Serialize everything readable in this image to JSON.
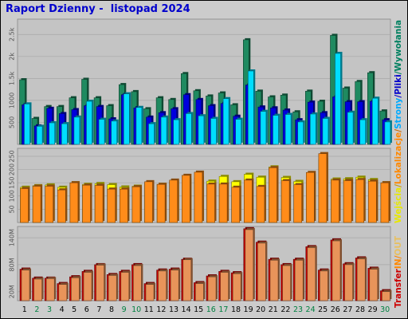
{
  "title": "Raport Dzienny -  listopad 2024",
  "colors": {
    "background": "#cccccc",
    "plot_bg": "#c4c4c4",
    "grid": "#a8a8a8",
    "weekday_label": "#000000",
    "weekend_label": "#008040"
  },
  "legend": [
    {
      "key": "wyjscia",
      "label": "Wejścia",
      "color": "#e8e800"
    },
    {
      "key": "sep1",
      "label": "/",
      "color": "#cc9900"
    },
    {
      "key": "lokalizacje",
      "label": "Lokalizacje",
      "color": "#ff8800"
    },
    {
      "key": "sep2",
      "label": "/",
      "color": "#cc6600"
    },
    {
      "key": "strony",
      "label": "Strony",
      "color": "#00aaff"
    },
    {
      "key": "sep3",
      "label": "/",
      "color": "#0000cc"
    },
    {
      "key": "pliki",
      "label": "Pliki",
      "color": "#0000cc"
    },
    {
      "key": "sep4",
      "label": "/",
      "color": "#008060"
    },
    {
      "key": "wywolania",
      "label": "Wywołania",
      "color": "#008060"
    }
  ],
  "legend2": [
    {
      "key": "transfer",
      "label": "Transfer",
      "color": "#cc0000"
    },
    {
      "key": "in",
      "label": "IN",
      "color": "#ff8800"
    },
    {
      "key": "sep",
      "label": "/",
      "color": "#ff8800"
    },
    {
      "key": "out",
      "label": "OUT",
      "color": "#e8c060"
    }
  ],
  "chart_data": [
    {
      "type": "bar",
      "name": "hits-files-pages",
      "categories": [
        "1",
        "2",
        "3",
        "4",
        "5",
        "6",
        "7",
        "8",
        "9",
        "10",
        "11",
        "12",
        "13",
        "14",
        "15",
        "16",
        "17",
        "18",
        "19",
        "20",
        "21",
        "22",
        "23",
        "24",
        "25",
        "26",
        "27",
        "28",
        "29",
        "30"
      ],
      "weekend": [
        2,
        3,
        9,
        10,
        16,
        17,
        23,
        24,
        30
      ],
      "yticks": [
        "500",
        "1000",
        "1.5k",
        "2k",
        "2.5k"
      ],
      "ytick_values": [
        500,
        1000,
        1500,
        2000,
        2500
      ],
      "ylim": [
        0,
        2850
      ],
      "series": [
        {
          "name": "Wywołania",
          "color": "#1f8a60",
          "values": [
            1470,
            590,
            860,
            860,
            1060,
            1480,
            1060,
            880,
            1360,
            1200,
            810,
            1060,
            1020,
            1610,
            1220,
            1100,
            1170,
            900,
            2380,
            1210,
            1080,
            1120,
            740,
            1210,
            980,
            2480,
            1280,
            1430,
            1630,
            760
          ]
        },
        {
          "name": "Pliki",
          "color": "#0000dd",
          "values": [
            900,
            420,
            820,
            700,
            790,
            880,
            860,
            580,
            1130,
            830,
            620,
            720,
            810,
            1130,
            1020,
            880,
            930,
            640,
            1350,
            850,
            830,
            780,
            560,
            960,
            720,
            1080,
            970,
            970,
            980,
            560
          ]
        },
        {
          "name": "Strony",
          "color": "#00ddff",
          "values": [
            920,
            410,
            490,
            470,
            620,
            980,
            570,
            530,
            1150,
            840,
            470,
            620,
            560,
            700,
            650,
            590,
            1040,
            570,
            1670,
            750,
            660,
            680,
            510,
            690,
            590,
            2070,
            730,
            560,
            1050,
            510
          ]
        }
      ]
    },
    {
      "type": "bar",
      "name": "visits-sites",
      "categories": [
        "1",
        "2",
        "3",
        "4",
        "5",
        "6",
        "7",
        "8",
        "9",
        "10",
        "11",
        "12",
        "13",
        "14",
        "15",
        "16",
        "17",
        "18",
        "19",
        "20",
        "21",
        "22",
        "23",
        "24",
        "25",
        "26",
        "27",
        "28",
        "29",
        "30"
      ],
      "yticks": [
        "50",
        "100",
        "150",
        "200",
        "250"
      ],
      "ytick_values": [
        50,
        100,
        150,
        200,
        250
      ],
      "ylim": [
        0,
        280
      ],
      "series": [
        {
          "name": "Wejścia",
          "color": "#ffff00",
          "values": [
            133,
            139,
            142,
            133,
            150,
            144,
            147,
            143,
            134,
            137,
            148,
            144,
            153,
            160,
            169,
            156,
            174,
            154,
            182,
            171,
            210,
            170,
            155,
            178,
            238,
            164,
            165,
            171,
            162,
            150
          ]
        },
        {
          "name": "Lokalizacje",
          "color": "#ff8c1a",
          "values": [
            128,
            137,
            137,
            123,
            150,
            141,
            140,
            126,
            126,
            135,
            154,
            144,
            160,
            178,
            190,
            145,
            145,
            133,
            160,
            136,
            207,
            158,
            143,
            189,
            260,
            160,
            158,
            162,
            156,
            150
          ]
        }
      ]
    },
    {
      "type": "bar",
      "name": "transfer",
      "categories": [
        "1",
        "2",
        "3",
        "4",
        "5",
        "6",
        "7",
        "8",
        "9",
        "10",
        "11",
        "12",
        "13",
        "14",
        "15",
        "16",
        "17",
        "18",
        "19",
        "20",
        "21",
        "22",
        "23",
        "24",
        "25",
        "26",
        "27",
        "28",
        "29",
        "30"
      ],
      "yticks": [
        "20M",
        "80M",
        "140M"
      ],
      "ytick_values": [
        20,
        80,
        140
      ],
      "unit": "MB",
      "ylim": [
        0,
        165
      ],
      "series": [
        {
          "name": "Transfer",
          "color": "#cc0000",
          "values": [
            70,
            50,
            50,
            38,
            53,
            65,
            80,
            58,
            65,
            80,
            38,
            68,
            70,
            92,
            40,
            55,
            65,
            62,
            160,
            130,
            92,
            80,
            92,
            120,
            68,
            135,
            82,
            95,
            72,
            22
          ]
        },
        {
          "name": "OUT",
          "color": "#e8945a",
          "values": [
            68,
            48,
            49,
            36,
            51,
            63,
            79,
            56,
            63,
            78,
            36,
            66,
            68,
            91,
            38,
            53,
            63,
            60,
            158,
            128,
            90,
            78,
            90,
            118,
            66,
            133,
            80,
            93,
            70,
            20
          ]
        }
      ]
    }
  ]
}
